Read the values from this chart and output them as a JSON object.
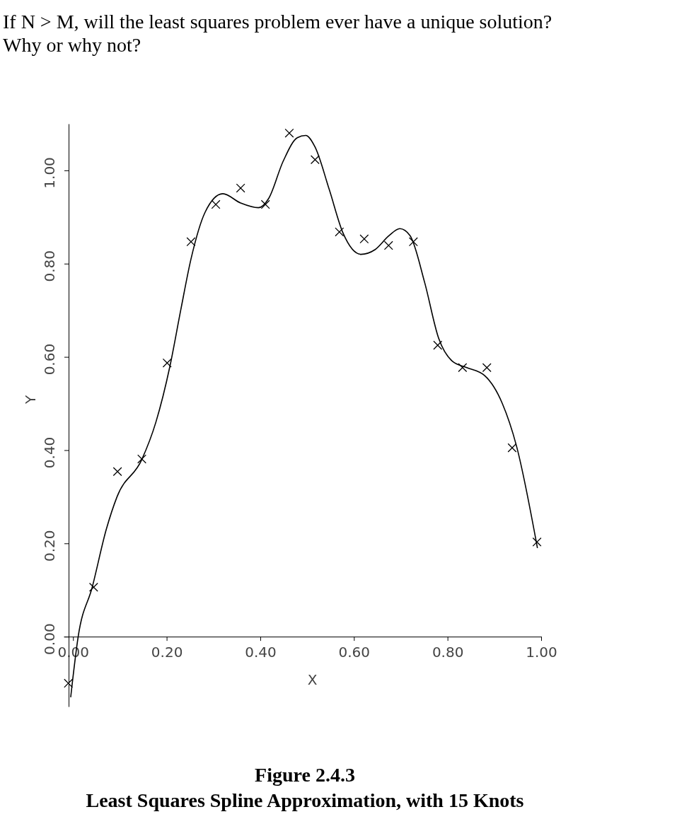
{
  "chart_data": {
    "type": "scatter",
    "title": "Figure 2.4.3",
    "subtitle": "Least Squares Spline Approximation, with 15 Knots",
    "annotations": [
      "If N > M, will the least squares problem ever have a unique solution?",
      "Why or why not?"
    ],
    "xlabel": "X",
    "ylabel": "Y",
    "xlim": [
      -0.02,
      1.0
    ],
    "ylim": [
      -0.15,
      1.1
    ],
    "xticks": [
      {
        "value": 0,
        "label": "0.00"
      },
      {
        "value": 0.2,
        "label": "0.20"
      },
      {
        "value": 0.4,
        "label": "0.40"
      },
      {
        "value": 0.6,
        "label": "0.60"
      },
      {
        "value": 0.8,
        "label": "0.80"
      },
      {
        "value": 1,
        "label": "1.00"
      }
    ],
    "yticks": [
      {
        "value": 0,
        "label": "0.00"
      },
      {
        "value": 0.2,
        "label": "0.20"
      },
      {
        "value": 0.4,
        "label": "0.40"
      },
      {
        "value": 0.6,
        "label": "0.60"
      },
      {
        "value": 0.8,
        "label": "0.80"
      },
      {
        "value": 1,
        "label": "1.00"
      }
    ],
    "grid": false,
    "series": [
      {
        "marker": "cross",
        "color": "#000000",
        "x": [
          -0.01,
          0.044,
          0.095,
          0.147,
          0.201,
          0.252,
          0.305,
          0.358,
          0.411,
          0.462,
          0.517,
          0.569,
          0.622,
          0.674,
          0.727,
          0.779,
          0.832,
          0.884,
          0.938,
          0.991
        ],
        "values": [
          -0.1,
          0.106,
          0.354,
          0.381,
          0.587,
          0.847,
          0.927,
          0.962,
          0.927,
          1.08,
          1.023,
          0.868,
          0.853,
          0.839,
          0.847,
          0.625,
          0.577,
          0.577,
          0.405,
          0.203
        ]
      },
      {
        "type": "line",
        "line_style": "solid",
        "color": "#000000",
        "x": [
          -0.005,
          0.011,
          0.041,
          0.071,
          0.094,
          0.147,
          0.177,
          0.207,
          0.23,
          0.252,
          0.282,
          0.32,
          0.358,
          0.396,
          0.418,
          0.449,
          0.479,
          0.497,
          0.517,
          0.547,
          0.577,
          0.615,
          0.645,
          0.675,
          0.698,
          0.72,
          0.751,
          0.781,
          0.811,
          0.841,
          0.879,
          0.917,
          0.947,
          0.992
        ],
        "values": [
          -0.13,
          0.0,
          0.106,
          0.23,
          0.3,
          0.38,
          0.46,
          0.58,
          0.7,
          0.81,
          0.91,
          0.95,
          0.93,
          0.92,
          0.94,
          1.02,
          1.07,
          1.075,
          1.05,
          0.96,
          0.865,
          0.82,
          0.83,
          0.86,
          0.875,
          0.86,
          0.76,
          0.64,
          0.59,
          0.577,
          0.56,
          0.5,
          0.41,
          0.19
        ]
      }
    ]
  }
}
